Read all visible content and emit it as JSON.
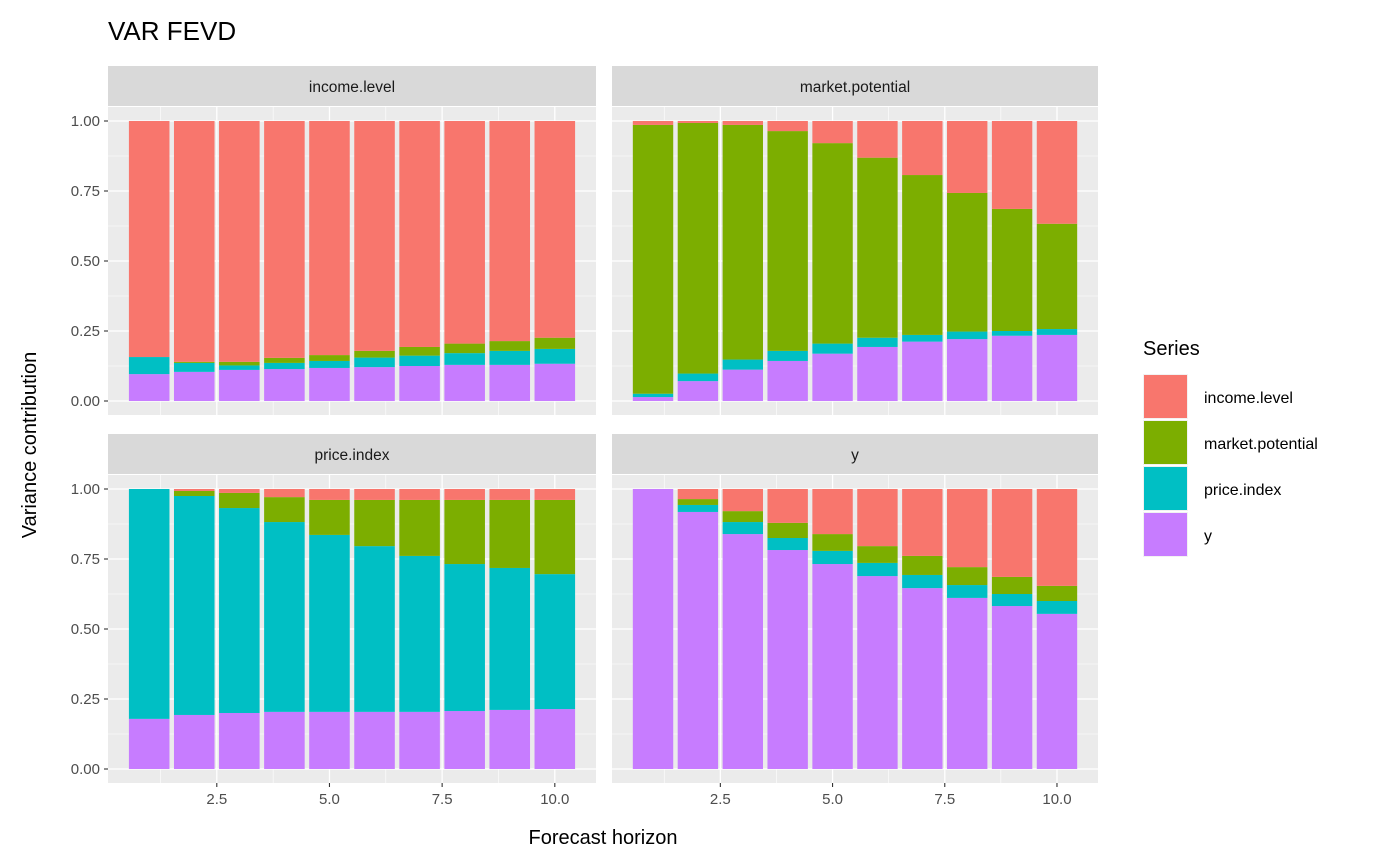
{
  "chart_data": {
    "type": "bar",
    "stacked": true,
    "title": "VAR FEVD",
    "xlabel": "Forecast horizon",
    "ylabel": "Variance contribution",
    "ylim": [
      0,
      1
    ],
    "xlim": [
      0.5,
      10.5
    ],
    "x_ticks": [
      2.5,
      5.0,
      7.5,
      10.0
    ],
    "x_tick_labels": [
      "2.5",
      "5.0",
      "7.5",
      "10.0"
    ],
    "y_ticks": [
      0,
      0.25,
      0.5,
      0.75,
      1.0
    ],
    "y_tick_labels": [
      "0.00",
      "0.25",
      "0.50",
      "0.75",
      "1.00"
    ],
    "grid": true,
    "legend": {
      "title": "Series",
      "placement": "right"
    },
    "series_names": [
      "income.level",
      "market.potential",
      "price.index",
      "y"
    ],
    "colors": {
      "income.level": "#F8766D",
      "market.potential": "#7CAE00",
      "price.index": "#00BFC4",
      "y": "#C77CFF"
    },
    "x": [
      1,
      2,
      3,
      4,
      5,
      6,
      7,
      8,
      9,
      10
    ],
    "facets": [
      {
        "label": "income.level",
        "series": [
          {
            "name": "income.level",
            "values": [
              0.843,
              0.86,
              0.86,
              0.846,
              0.836,
              0.821,
              0.807,
              0.795,
              0.786,
              0.774
            ]
          },
          {
            "name": "market.potential",
            "values": [
              0.0,
              0.004,
              0.013,
              0.018,
              0.021,
              0.024,
              0.031,
              0.034,
              0.035,
              0.04
            ]
          },
          {
            "name": "price.index",
            "values": [
              0.061,
              0.032,
              0.016,
              0.022,
              0.025,
              0.034,
              0.037,
              0.042,
              0.05,
              0.053
            ]
          },
          {
            "name": "y",
            "values": [
              0.096,
              0.104,
              0.111,
              0.114,
              0.118,
              0.121,
              0.125,
              0.129,
              0.129,
              0.133
            ]
          }
        ]
      },
      {
        "label": "market.potential",
        "series": [
          {
            "name": "income.level",
            "values": [
              0.014,
              0.007,
              0.014,
              0.036,
              0.079,
              0.131,
              0.193,
              0.257,
              0.314,
              0.367
            ]
          },
          {
            "name": "market.potential",
            "values": [
              0.96,
              0.895,
              0.838,
              0.785,
              0.716,
              0.643,
              0.571,
              0.495,
              0.436,
              0.376
            ]
          },
          {
            "name": "price.index",
            "values": [
              0.012,
              0.027,
              0.036,
              0.036,
              0.036,
              0.033,
              0.024,
              0.027,
              0.017,
              0.021
            ]
          },
          {
            "name": "y",
            "values": [
              0.014,
              0.071,
              0.112,
              0.143,
              0.169,
              0.193,
              0.212,
              0.221,
              0.233,
              0.236
            ]
          }
        ]
      },
      {
        "label": "price.index",
        "series": [
          {
            "name": "income.level",
            "values": [
              0.0,
              0.007,
              0.014,
              0.029,
              0.039,
              0.039,
              0.039,
              0.039,
              0.039,
              0.039
            ]
          },
          {
            "name": "market.potential",
            "values": [
              0.0,
              0.018,
              0.054,
              0.089,
              0.125,
              0.165,
              0.2,
              0.229,
              0.243,
              0.265
            ]
          },
          {
            "name": "price.index",
            "values": [
              0.821,
              0.782,
              0.732,
              0.678,
              0.632,
              0.592,
              0.557,
              0.525,
              0.507,
              0.482
            ]
          },
          {
            "name": "y",
            "values": [
              0.179,
              0.193,
              0.2,
              0.204,
              0.204,
              0.204,
              0.204,
              0.207,
              0.211,
              0.214
            ]
          }
        ]
      },
      {
        "label": "y",
        "series": [
          {
            "name": "income.level",
            "values": [
              0.0,
              0.036,
              0.079,
              0.121,
              0.161,
              0.204,
              0.239,
              0.279,
              0.314,
              0.346
            ]
          },
          {
            "name": "market.potential",
            "values": [
              0.0,
              0.021,
              0.039,
              0.054,
              0.06,
              0.06,
              0.068,
              0.064,
              0.061,
              0.054
            ]
          },
          {
            "name": "price.index",
            "values": [
              0.0,
              0.025,
              0.043,
              0.043,
              0.047,
              0.047,
              0.047,
              0.046,
              0.043,
              0.046
            ]
          },
          {
            "name": "y",
            "values": [
              1.0,
              0.918,
              0.839,
              0.782,
              0.732,
              0.689,
              0.646,
              0.611,
              0.582,
              0.554
            ]
          }
        ]
      }
    ]
  }
}
